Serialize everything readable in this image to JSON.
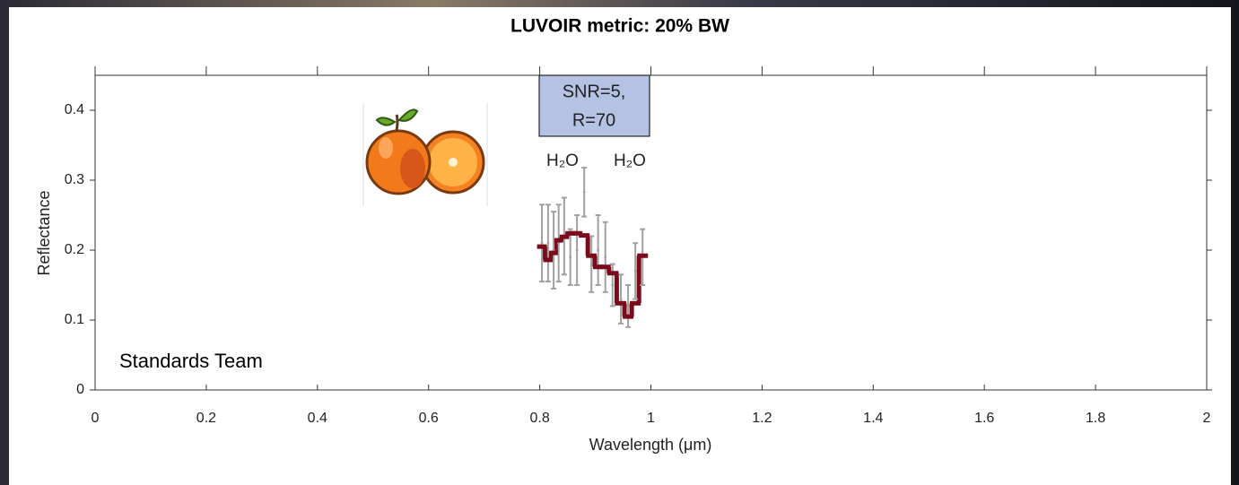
{
  "chart_data": {
    "type": "step",
    "title": "LUVOIR metric: 20% BW",
    "x_label": "Wavelength (μm)",
    "y_label": "Reflectance",
    "annotations": {
      "box": [
        "SNR=5,",
        "R=70"
      ],
      "h2o_left": "H₂O",
      "h2o_right": "H₂O",
      "team": "Standards Team"
    },
    "xlim": [
      0,
      2
    ],
    "xticks": [
      0,
      0.2,
      0.4,
      0.6,
      0.8,
      1,
      1.2,
      1.4,
      1.6,
      1.8,
      2
    ],
    "ylim": [
      0,
      0.45
    ],
    "yticks": [
      0,
      0.1,
      0.2,
      0.3,
      0.4
    ],
    "x": [
      0.804,
      0.815,
      0.825,
      0.834,
      0.844,
      0.855,
      0.867,
      0.88,
      0.893,
      0.905,
      0.918,
      0.931,
      0.946,
      0.959,
      0.972,
      0.985
    ],
    "series": [
      {
        "color": "#7b0a1b",
        "values": [
          0.205,
          0.186,
          0.196,
          0.214,
          0.219,
          0.224,
          0.224,
          0.221,
          0.192,
          0.176,
          0.176,
          0.167,
          0.124,
          0.105,
          0.124,
          0.192
        ]
      },
      {
        "color": "#a0a0a0",
        "values": [
          0.21,
          0.21,
          0.2,
          0.21,
          0.22,
          0.19,
          0.2,
          0.283,
          0.18,
          0.2,
          0.19,
          0.15,
          0.13,
          0.12,
          0.17,
          0.19
        ],
        "errors": [
          0.055,
          0.055,
          0.055,
          0.055,
          0.055,
          0.04,
          0.05,
          0.035,
          0.04,
          0.05,
          0.05,
          0.03,
          0.035,
          0.03,
          0.04,
          0.04
        ]
      }
    ]
  }
}
